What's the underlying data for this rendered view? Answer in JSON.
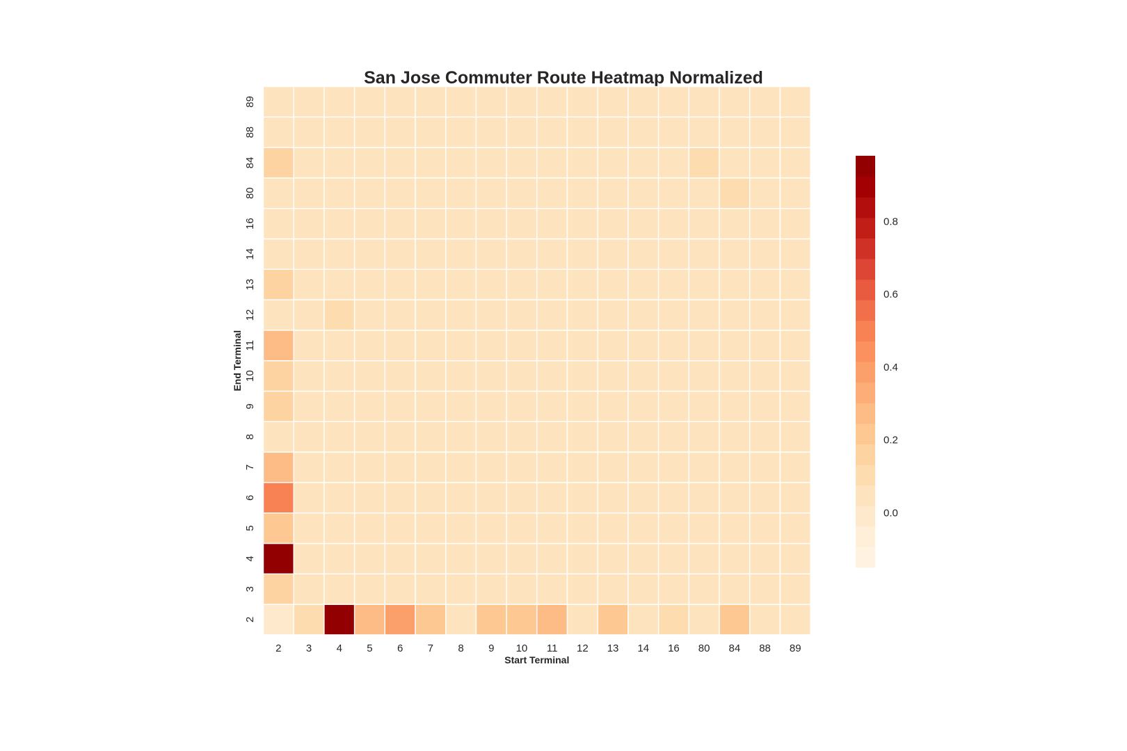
{
  "chart_data": {
    "type": "heatmap",
    "title": "San Jose Commuter Route Heatmap Normalized",
    "xlabel": "Start Terminal",
    "ylabel": "End Terminal",
    "x_categories": [
      "2",
      "3",
      "4",
      "5",
      "6",
      "7",
      "8",
      "9",
      "10",
      "11",
      "12",
      "13",
      "14",
      "16",
      "80",
      "84",
      "88",
      "89"
    ],
    "y_categories": [
      "2",
      "3",
      "4",
      "5",
      "6",
      "7",
      "8",
      "9",
      "10",
      "11",
      "12",
      "13",
      "14",
      "16",
      "80",
      "84",
      "88",
      "89"
    ],
    "values": [
      [
        0.0,
        0.08,
        0.97,
        0.25,
        0.4,
        0.2,
        0.07,
        0.22,
        0.2,
        0.3,
        0.02,
        0.23,
        0.02,
        0.12,
        0.02,
        0.22,
        0.02,
        0.02
      ],
      [
        0.15,
        0.02,
        0.03,
        0.03,
        0.03,
        0.03,
        0.02,
        0.02,
        0.02,
        0.02,
        0.02,
        0.02,
        0.02,
        0.02,
        0.02,
        0.07,
        0.02,
        0.02
      ],
      [
        0.97,
        0.02,
        0.03,
        0.03,
        0.03,
        0.03,
        0.02,
        0.02,
        0.02,
        0.02,
        0.06,
        0.02,
        0.06,
        0.02,
        0.02,
        0.03,
        0.02,
        0.02
      ],
      [
        0.22,
        0.02,
        0.03,
        0.03,
        0.03,
        0.03,
        0.02,
        0.02,
        0.02,
        0.02,
        0.02,
        0.02,
        0.02,
        0.02,
        0.02,
        0.03,
        0.02,
        0.02
      ],
      [
        0.5,
        0.02,
        0.03,
        0.03,
        0.03,
        0.03,
        0.02,
        0.02,
        0.02,
        0.02,
        0.02,
        0.02,
        0.02,
        0.02,
        0.06,
        0.03,
        0.02,
        0.02
      ],
      [
        0.3,
        0.02,
        0.03,
        0.03,
        0.03,
        0.03,
        0.02,
        0.02,
        0.02,
        0.02,
        0.02,
        0.02,
        0.02,
        0.07,
        0.02,
        0.03,
        0.02,
        0.02
      ],
      [
        0.07,
        0.02,
        0.03,
        0.03,
        0.03,
        0.03,
        0.02,
        0.02,
        0.06,
        0.02,
        0.02,
        0.02,
        0.02,
        0.02,
        0.02,
        0.03,
        0.02,
        0.02
      ],
      [
        0.18,
        0.02,
        0.03,
        0.03,
        0.03,
        0.06,
        0.02,
        0.02,
        0.02,
        0.02,
        0.02,
        0.02,
        0.02,
        0.02,
        0.02,
        0.03,
        0.02,
        0.02
      ],
      [
        0.15,
        0.02,
        0.03,
        0.03,
        0.03,
        0.03,
        0.02,
        0.02,
        0.02,
        0.02,
        0.02,
        0.02,
        0.02,
        0.02,
        0.02,
        0.03,
        0.02,
        0.02
      ],
      [
        0.27,
        0.02,
        0.03,
        0.03,
        0.03,
        0.03,
        0.07,
        0.02,
        0.02,
        0.02,
        0.02,
        0.02,
        0.02,
        0.02,
        0.02,
        0.03,
        0.02,
        0.02
      ],
      [
        0.07,
        0.02,
        0.1,
        0.03,
        0.03,
        0.03,
        0.02,
        0.02,
        0.02,
        0.02,
        0.02,
        0.02,
        0.02,
        0.02,
        0.02,
        0.03,
        0.02,
        0.02
      ],
      [
        0.18,
        0.02,
        0.03,
        0.03,
        0.03,
        0.03,
        0.02,
        0.02,
        0.02,
        0.02,
        0.02,
        0.02,
        0.02,
        0.02,
        0.02,
        0.03,
        0.02,
        0.02
      ],
      [
        0.03,
        0.02,
        0.07,
        0.03,
        0.03,
        0.03,
        0.02,
        0.02,
        0.02,
        0.02,
        0.02,
        0.02,
        0.02,
        0.02,
        0.02,
        0.03,
        0.02,
        0.02
      ],
      [
        0.07,
        0.02,
        0.03,
        0.03,
        0.03,
        0.03,
        0.02,
        0.02,
        0.02,
        0.02,
        0.02,
        0.02,
        0.02,
        0.02,
        0.02,
        0.03,
        0.02,
        0.02
      ],
      [
        0.03,
        0.02,
        0.03,
        0.03,
        0.03,
        0.03,
        0.02,
        0.02,
        0.02,
        0.02,
        0.02,
        0.02,
        0.02,
        0.02,
        0.02,
        0.1,
        0.02,
        0.02
      ],
      [
        0.18,
        0.02,
        0.03,
        0.03,
        0.03,
        0.03,
        0.02,
        0.02,
        0.02,
        0.02,
        0.02,
        0.02,
        0.02,
        0.02,
        0.1,
        0.03,
        0.02,
        0.02
      ],
      [
        0.02,
        0.02,
        0.02,
        0.02,
        0.02,
        0.02,
        0.02,
        0.02,
        0.02,
        0.02,
        0.02,
        0.02,
        0.02,
        0.02,
        0.02,
        0.02,
        0.02,
        0.02
      ],
      [
        0.02,
        0.02,
        0.02,
        0.02,
        0.02,
        0.02,
        0.02,
        0.02,
        0.02,
        0.02,
        0.02,
        0.02,
        0.02,
        0.02,
        0.02,
        0.02,
        0.02,
        0.02
      ]
    ],
    "colorbar": {
      "vmin": -0.15,
      "vmax": 0.98,
      "ticks": [
        0.0,
        0.2,
        0.4,
        0.6,
        0.8
      ],
      "tick_labels": [
        "0.0",
        "0.2",
        "0.4",
        "0.6",
        "0.8"
      ],
      "levels": 20
    },
    "colormap": [
      "#fff4e6",
      "#ffedd6",
      "#fee4c1",
      "#fdd8a8",
      "#fdc68f",
      "#fdb07a",
      "#fc9964",
      "#f77f51",
      "#ea5f43",
      "#d83b2e",
      "#be1b15",
      "#a60004",
      "#8b0000"
    ],
    "grid": false
  }
}
